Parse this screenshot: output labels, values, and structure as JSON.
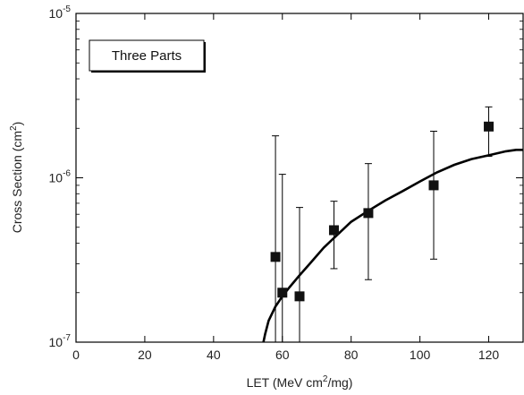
{
  "chart_data": {
    "type": "scatter",
    "title": "",
    "xlabel": {
      "pre": "LET (MeV cm",
      "sup": "2",
      "post": "/mg)"
    },
    "ylabel": {
      "pre": "Cross Section (cm",
      "sup": "2",
      "post": ")"
    },
    "legend_box": "Three Parts",
    "xlim": [
      0,
      130
    ],
    "ylim": [
      1e-07,
      1e-05
    ],
    "y_scale": "log",
    "x_ticks": [
      0,
      20,
      40,
      60,
      80,
      100,
      120
    ],
    "x_tick_labels": [
      "0",
      "20",
      "40",
      "60",
      "80",
      "100",
      "120"
    ],
    "y_ticks": [
      {
        "value": 1e-07,
        "base": "10",
        "exp": "-7"
      },
      {
        "value": 1e-06,
        "base": "10",
        "exp": "-6"
      },
      {
        "value": 1e-05,
        "base": "10",
        "exp": "-5"
      }
    ],
    "grid": false,
    "series": [
      {
        "kind": "points_with_error_bars",
        "points": [
          {
            "x": 58,
            "y": 3.3e-07,
            "y_low": 1e-07,
            "y_high": 1.8e-06
          },
          {
            "x": 60,
            "y": 2e-07,
            "y_low": 1e-07,
            "y_high": 1.05e-06
          },
          {
            "x": 65,
            "y": 1.9e-07,
            "y_low": 1e-07,
            "y_high": 6.6e-07
          },
          {
            "x": 75,
            "y": 4.8e-07,
            "y_low": 2.8e-07,
            "y_high": 7.2e-07
          },
          {
            "x": 85,
            "y": 6.1e-07,
            "y_low": 2.4e-07,
            "y_high": 1.22e-06
          },
          {
            "x": 104,
            "y": 9e-07,
            "y_low": 3.2e-07,
            "y_high": 1.92e-06
          },
          {
            "x": 120,
            "y": 2.05e-06,
            "y_low": 1.35e-06,
            "y_high": 2.7e-06
          }
        ]
      },
      {
        "kind": "fit_curve",
        "points": [
          [
            54.5,
            1e-07
          ],
          [
            55,
            1.12e-07
          ],
          [
            56,
            1.35e-07
          ],
          [
            58,
            1.65e-07
          ],
          [
            60,
            1.9e-07
          ],
          [
            62,
            2.15e-07
          ],
          [
            65,
            2.55e-07
          ],
          [
            68,
            3e-07
          ],
          [
            72,
            3.75e-07
          ],
          [
            76,
            4.5e-07
          ],
          [
            80,
            5.4e-07
          ],
          [
            85,
            6.3e-07
          ],
          [
            90,
            7.3e-07
          ],
          [
            95,
            8.3e-07
          ],
          [
            100,
            9.5e-07
          ],
          [
            105,
            1.08e-06
          ],
          [
            110,
            1.2e-06
          ],
          [
            115,
            1.3e-06
          ],
          [
            120,
            1.37e-06
          ],
          [
            125,
            1.45e-06
          ],
          [
            128,
            1.48e-06
          ],
          [
            130,
            1.48e-06
          ]
        ]
      }
    ]
  }
}
